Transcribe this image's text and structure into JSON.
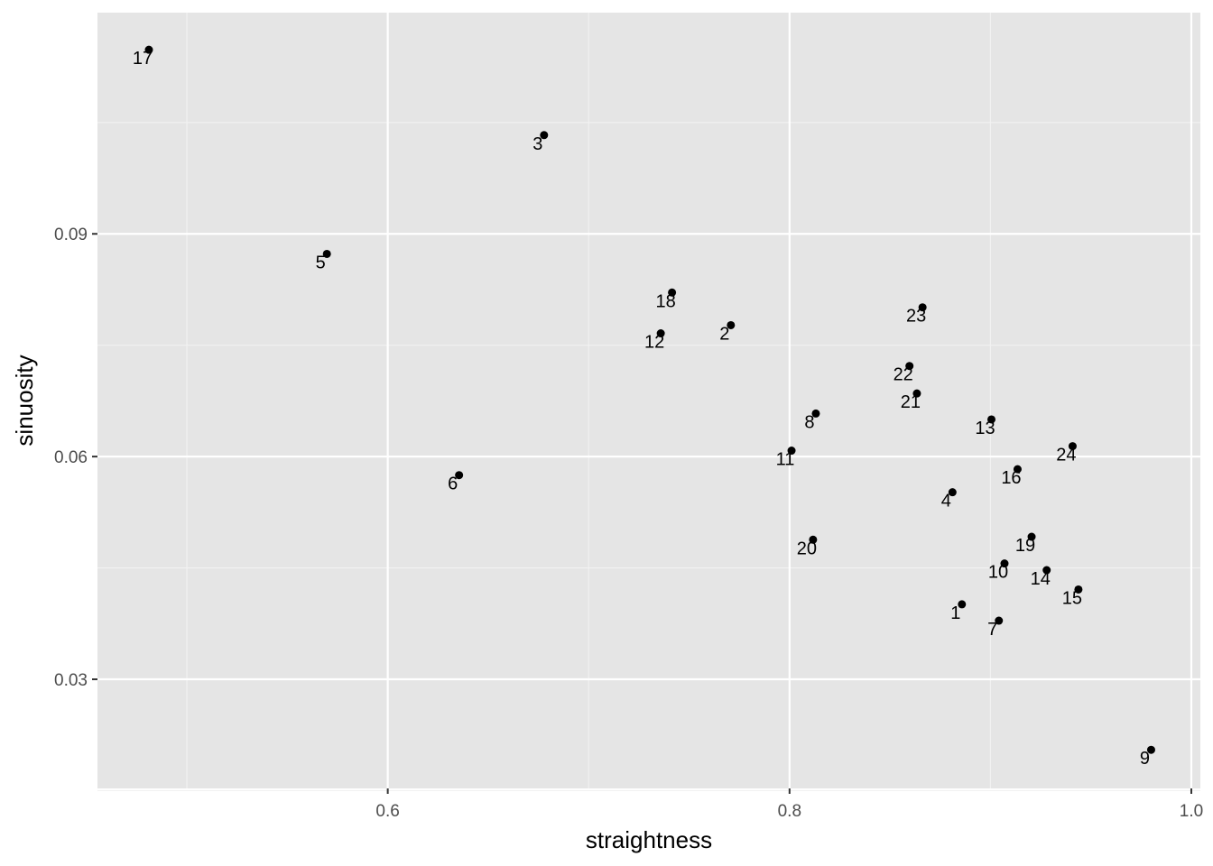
{
  "chart_data": {
    "type": "scatter",
    "xlabel": "straightness",
    "ylabel": "sinuosity",
    "xlim": [
      0.4555,
      1.0045
    ],
    "ylim": [
      0.0153,
      0.1198
    ],
    "x_ticks": [
      0.6,
      0.8,
      1.0
    ],
    "x_tick_labels": [
      "0.6",
      "0.8",
      "1.0"
    ],
    "x_minor_ticks": [
      0.5,
      0.7,
      0.9
    ],
    "y_ticks": [
      0.03,
      0.06,
      0.09
    ],
    "y_tick_labels": [
      "0.03",
      "0.06",
      "0.09"
    ],
    "y_minor_ticks": [
      0.015,
      0.045,
      0.075,
      0.105
    ],
    "grid": true,
    "series": [
      {
        "points": [
          {
            "label": "1",
            "x": 0.8858,
            "y": 0.0401
          },
          {
            "label": "2",
            "x": 0.7708,
            "y": 0.0777
          },
          {
            "label": "3",
            "x": 0.6778,
            "y": 0.1033
          },
          {
            "label": "4",
            "x": 0.8811,
            "y": 0.0552
          },
          {
            "label": "5",
            "x": 0.5697,
            "y": 0.0873
          },
          {
            "label": "6",
            "x": 0.6355,
            "y": 0.0575
          },
          {
            "label": "7",
            "x": 0.9042,
            "y": 0.0379
          },
          {
            "label": "8",
            "x": 0.8131,
            "y": 0.0658
          },
          {
            "label": "9",
            "x": 0.98,
            "y": 0.0205
          },
          {
            "label": "10",
            "x": 0.907,
            "y": 0.0456
          },
          {
            "label": "11",
            "x": 0.801,
            "y": 0.0608
          },
          {
            "label": "12",
            "x": 0.7359,
            "y": 0.0766
          },
          {
            "label": "13",
            "x": 0.9005,
            "y": 0.065
          },
          {
            "label": "14",
            "x": 0.928,
            "y": 0.0447
          },
          {
            "label": "15",
            "x": 0.9438,
            "y": 0.0421
          },
          {
            "label": "16",
            "x": 0.9135,
            "y": 0.0583
          },
          {
            "label": "17",
            "x": 0.4811,
            "y": 0.1148
          },
          {
            "label": "18",
            "x": 0.7415,
            "y": 0.0821
          },
          {
            "label": "19",
            "x": 0.9205,
            "y": 0.0492
          },
          {
            "label": "20",
            "x": 0.8117,
            "y": 0.0488
          },
          {
            "label": "21",
            "x": 0.8634,
            "y": 0.0685
          },
          {
            "label": "22",
            "x": 0.8597,
            "y": 0.0722
          },
          {
            "label": "23",
            "x": 0.8662,
            "y": 0.0801
          },
          {
            "label": "24",
            "x": 0.9409,
            "y": 0.0614
          }
        ]
      }
    ]
  }
}
